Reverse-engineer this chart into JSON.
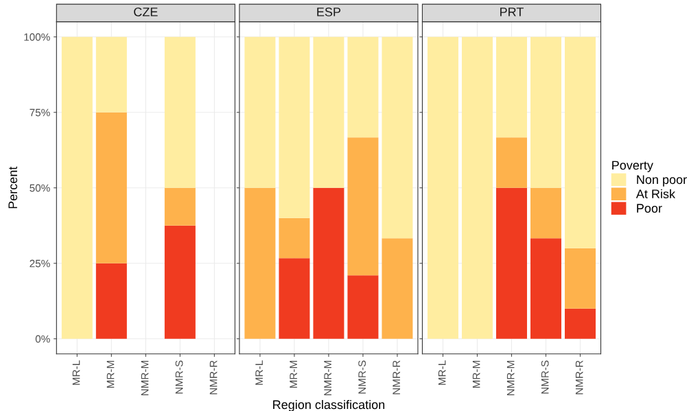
{
  "chart_data": [
    {
      "type": "bar",
      "title": "CZE",
      "ylabel": "Percent",
      "stacked": true,
      "grid": true,
      "categories": [
        "MR-L",
        "MR-M",
        "NMR-M",
        "NMR-S",
        "NMR-R"
      ],
      "ylim": [
        -5,
        105
      ],
      "yticks": [
        {
          "value": 0,
          "label": "0%"
        },
        {
          "value": 25,
          "label": "25%"
        },
        {
          "value": 50,
          "label": "50%"
        },
        {
          "value": 75,
          "label": "75%"
        },
        {
          "value": 100,
          "label": "100%"
        }
      ],
      "series": [
        {
          "color": "#f03b20",
          "values": [
            0,
            25,
            null,
            37.5,
            null
          ]
        },
        {
          "color": "#feb24c",
          "values": [
            0,
            50,
            null,
            12.5,
            null
          ]
        },
        {
          "color": "#ffeda0",
          "values": [
            100,
            25,
            null,
            50,
            null
          ]
        }
      ]
    },
    {
      "type": "bar",
      "title": "ESP",
      "xlabel": "Region classification",
      "stacked": true,
      "grid": true,
      "tick_labels": "x",
      "categories": [
        "MR-L",
        "MR-M",
        "NMR-M",
        "NMR-S",
        "NMR-R"
      ],
      "ylim": [
        -5,
        105
      ],
      "yticks": [
        {
          "value": 0,
          "label": null
        },
        {
          "value": 25,
          "label": null
        },
        {
          "value": 50,
          "label": null
        },
        {
          "value": 75,
          "label": null
        },
        {
          "value": 100,
          "label": null
        }
      ],
      "series": [
        {
          "color": "#f03b20",
          "values": [
            0,
            26.7,
            50,
            21,
            0
          ]
        },
        {
          "color": "#feb24c",
          "values": [
            50,
            13.3,
            0,
            45.7,
            33.3
          ]
        },
        {
          "color": "#ffeda0",
          "values": [
            50,
            60,
            50,
            33.3,
            66.7
          ]
        }
      ]
    },
    {
      "type": "bar",
      "title": "PRT",
      "stacked": true,
      "grid": true,
      "legend": "right",
      "legend_title": "Poverty",
      "tick_labels": "x",
      "categories": [
        "MR-L",
        "MR-M",
        "NMR-M",
        "NMR-S",
        "NMR-R"
      ],
      "ylim": [
        -5,
        105
      ],
      "yticks": [
        {
          "value": 0,
          "label": null
        },
        {
          "value": 25,
          "label": null
        },
        {
          "value": 50,
          "label": null
        },
        {
          "value": 75,
          "label": null
        },
        {
          "value": 100,
          "label": null
        }
      ],
      "series": [
        {
          "name": "Poor",
          "color": "#f03b20",
          "values": [
            0,
            0,
            50,
            33.3,
            10
          ]
        },
        {
          "name": "At Risk",
          "color": "#feb24c",
          "values": [
            0,
            0,
            16.7,
            16.7,
            20
          ]
        },
        {
          "name": "Non poor",
          "color": "#ffeda0",
          "values": [
            100,
            100,
            33.3,
            50,
            70
          ]
        }
      ]
    }
  ]
}
